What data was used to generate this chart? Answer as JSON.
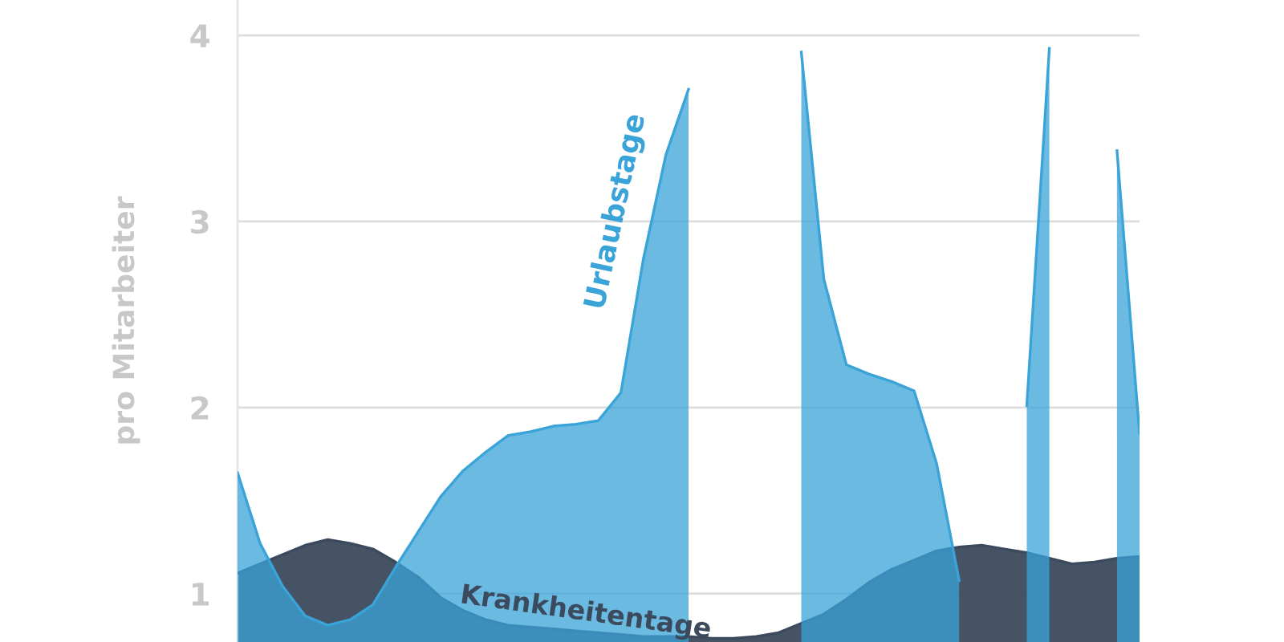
{
  "chart_data": {
    "type": "area",
    "ylabel": "pro Mitarbeiter",
    "ylim": [
      0.74,
      4.19
    ],
    "yticks": [
      1,
      2,
      3,
      4
    ],
    "tick_labels": "y",
    "grid": "y",
    "legend": false,
    "categories": [
      null,
      null,
      null,
      null,
      null,
      null,
      null,
      null,
      null,
      null,
      null,
      null,
      null,
      null,
      null,
      null,
      null,
      null,
      null,
      null,
      null,
      null,
      null,
      null,
      null,
      null,
      null,
      null,
      null,
      null,
      null,
      null,
      null,
      null,
      null,
      null,
      null,
      null,
      null,
      null,
      null
    ],
    "series": [
      {
        "name": "Krankheitentage",
        "color": "#3b4a5c",
        "values": [
          1.11,
          1.16,
          1.21,
          1.26,
          1.29,
          1.27,
          1.24,
          1.17,
          1.09,
          0.98,
          0.91,
          0.86,
          0.83,
          0.82,
          0.81,
          0.8,
          0.79,
          0.78,
          0.77,
          0.77,
          0.77,
          0.76,
          0.76,
          0.77,
          0.79,
          0.84,
          0.89,
          0.97,
          1.06,
          1.13,
          1.18,
          1.23,
          1.25,
          1.26,
          1.24,
          1.22,
          1.19,
          1.16,
          1.17,
          1.19,
          1.2
        ]
      },
      {
        "name": "Urlaubstage",
        "color": "#3aa3d8",
        "values": [
          1.65,
          1.27,
          1.04,
          0.88,
          0.83,
          0.86,
          0.94,
          1.14,
          1.33,
          1.52,
          1.66,
          1.76,
          1.85,
          1.87,
          1.9,
          1.91,
          1.93,
          2.08,
          2.8,
          3.36,
          3.71,
          null,
          null,
          null,
          null,
          3.91,
          2.69,
          2.23,
          2.18,
          2.14,
          2.09,
          1.7,
          1.07,
          null,
          null,
          2.01,
          3.93,
          null,
          null,
          3.38,
          1.86
        ]
      }
    ]
  }
}
